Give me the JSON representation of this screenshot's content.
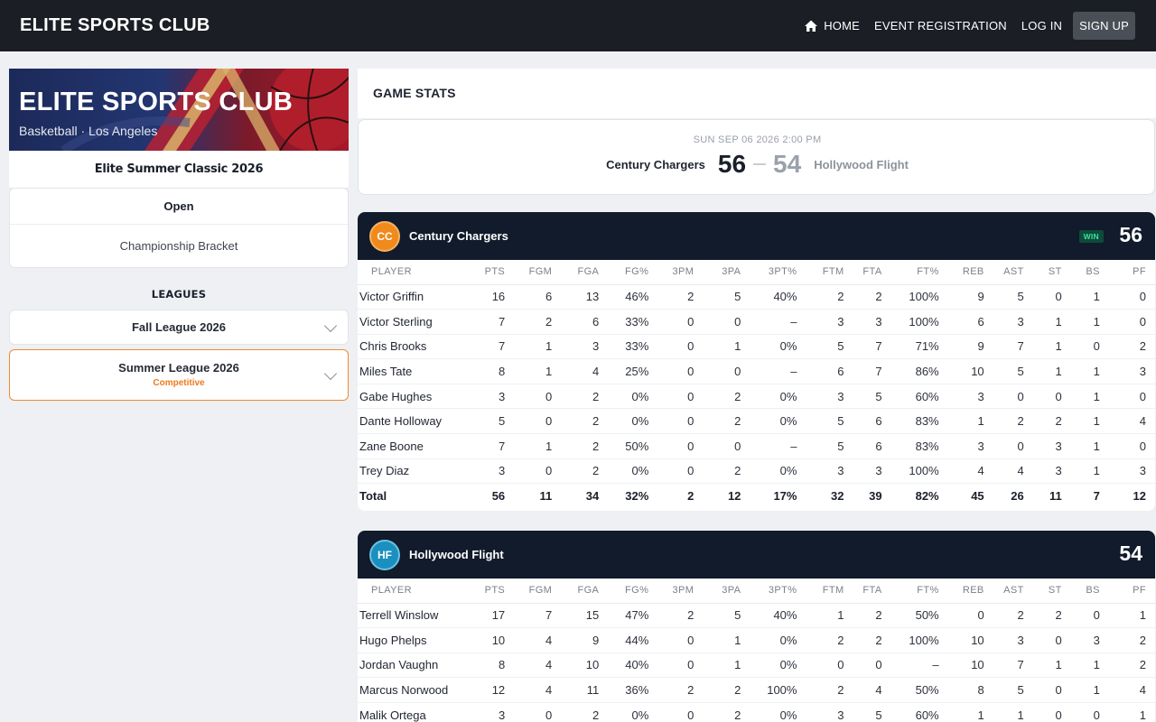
{
  "nav": {
    "brand": "ELITE SPORTS CLUB",
    "home": "HOME",
    "event_registration": "EVENT REGISTRATION",
    "login": "LOG IN",
    "signup": "SIGN UP"
  },
  "sidebar": {
    "banner_title": "ELITE SPORTS CLUB",
    "banner_subtitle": "Basketball · Los Angeles",
    "event_name": "Elite Summer Classic 2026",
    "division": "Open",
    "bracket": "Championship Bracket",
    "leagues_heading": "LEAGUES",
    "leagues": [
      {
        "name": "Fall League 2026",
        "tag": ""
      },
      {
        "name": "Summer League 2026",
        "tag": "Competitive"
      }
    ]
  },
  "main": {
    "heading": "GAME STATS",
    "game_date": "SUN SEP 06 2026 2:00 PM",
    "home_team": "Century Chargers",
    "away_team": "Hollywood Flight",
    "home_score": "56",
    "away_score": "54"
  },
  "columns": [
    "PLAYER",
    "PTS",
    "FGM",
    "FGA",
    "FG%",
    "3PM",
    "3PA",
    "3PT%",
    "FTM",
    "FTA",
    "FT%",
    "REB",
    "AST",
    "ST",
    "BS",
    "PF"
  ],
  "teams": [
    {
      "initials": "CC",
      "name": "Century Chargers",
      "badge": "WIN",
      "score": "56",
      "players": [
        [
          "Victor Griffin",
          "16",
          "6",
          "13",
          "46%",
          "2",
          "5",
          "40%",
          "2",
          "2",
          "100%",
          "9",
          "5",
          "0",
          "1",
          "0"
        ],
        [
          "Victor Sterling",
          "7",
          "2",
          "6",
          "33%",
          "0",
          "0",
          "–",
          "3",
          "3",
          "100%",
          "6",
          "3",
          "1",
          "1",
          "0"
        ],
        [
          "Chris Brooks",
          "7",
          "1",
          "3",
          "33%",
          "0",
          "1",
          "0%",
          "5",
          "7",
          "71%",
          "9",
          "7",
          "1",
          "0",
          "2"
        ],
        [
          "Miles Tate",
          "8",
          "1",
          "4",
          "25%",
          "0",
          "0",
          "–",
          "6",
          "7",
          "86%",
          "10",
          "5",
          "1",
          "1",
          "3"
        ],
        [
          "Gabe Hughes",
          "3",
          "0",
          "2",
          "0%",
          "0",
          "2",
          "0%",
          "3",
          "5",
          "60%",
          "3",
          "0",
          "0",
          "1",
          "0"
        ],
        [
          "Dante Holloway",
          "5",
          "0",
          "2",
          "0%",
          "0",
          "2",
          "0%",
          "5",
          "6",
          "83%",
          "1",
          "2",
          "2",
          "1",
          "4"
        ],
        [
          "Zane Boone",
          "7",
          "1",
          "2",
          "50%",
          "0",
          "0",
          "–",
          "5",
          "6",
          "83%",
          "3",
          "0",
          "3",
          "1",
          "0"
        ],
        [
          "Trey Diaz",
          "3",
          "0",
          "2",
          "0%",
          "0",
          "2",
          "0%",
          "3",
          "3",
          "100%",
          "4",
          "4",
          "3",
          "1",
          "3"
        ]
      ],
      "total": [
        "Total",
        "56",
        "11",
        "34",
        "32%",
        "2",
        "12",
        "17%",
        "32",
        "39",
        "82%",
        "45",
        "26",
        "11",
        "7",
        "12"
      ]
    },
    {
      "initials": "HF",
      "name": "Hollywood Flight",
      "badge": "",
      "score": "54",
      "players": [
        [
          "Terrell Winslow",
          "17",
          "7",
          "15",
          "47%",
          "2",
          "5",
          "40%",
          "1",
          "2",
          "50%",
          "0",
          "2",
          "2",
          "0",
          "1"
        ],
        [
          "Hugo Phelps",
          "10",
          "4",
          "9",
          "44%",
          "0",
          "1",
          "0%",
          "2",
          "2",
          "100%",
          "10",
          "3",
          "0",
          "3",
          "2"
        ],
        [
          "Jordan Vaughn",
          "8",
          "4",
          "10",
          "40%",
          "0",
          "1",
          "0%",
          "0",
          "0",
          "–",
          "10",
          "7",
          "1",
          "1",
          "2"
        ],
        [
          "Marcus Norwood",
          "12",
          "4",
          "11",
          "36%",
          "2",
          "2",
          "100%",
          "2",
          "4",
          "50%",
          "8",
          "5",
          "0",
          "1",
          "4"
        ],
        [
          "Malik Ortega",
          "3",
          "0",
          "2",
          "0%",
          "0",
          "2",
          "0%",
          "3",
          "5",
          "60%",
          "1",
          "1",
          "0",
          "0",
          "1"
        ]
      ]
    }
  ],
  "colors": {
    "accent": "#f08a2e",
    "nav_bg": "#1b1e24",
    "team_head_bg": "#111b2b",
    "win_text": "#3be0a0"
  }
}
